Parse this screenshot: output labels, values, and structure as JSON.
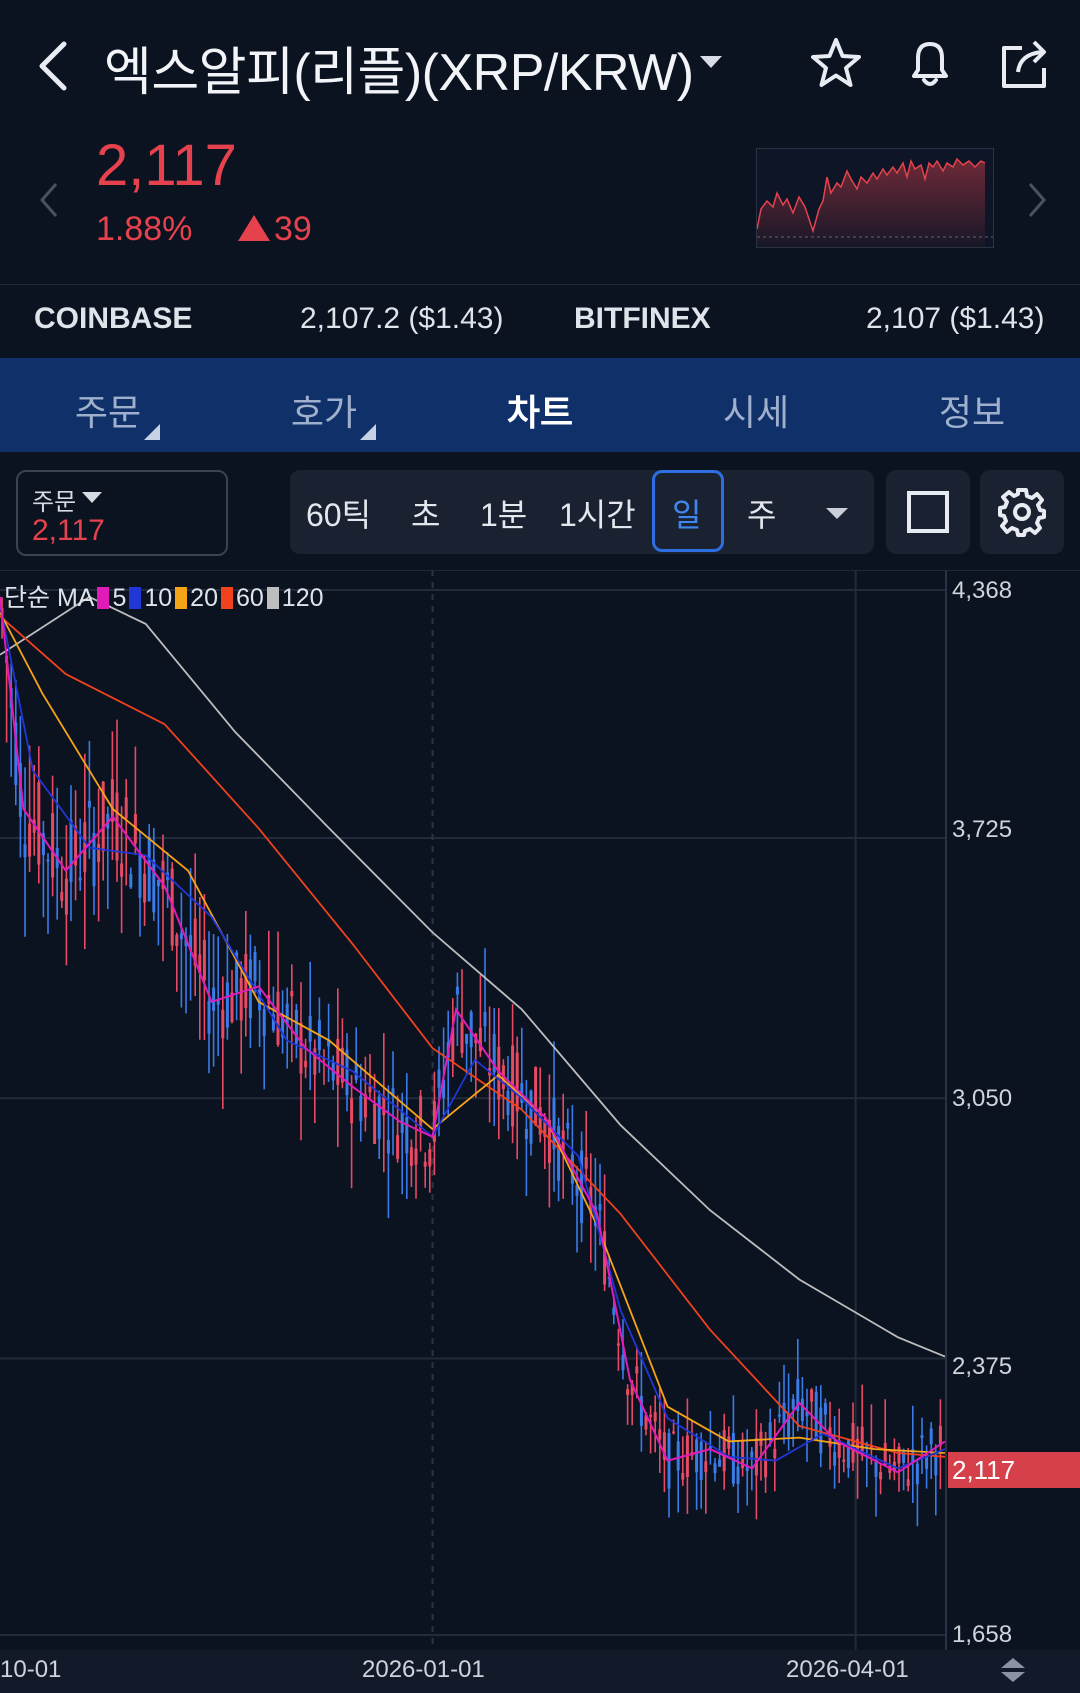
{
  "header": {
    "title": "엑스알피(리플)(XRP/KRW)",
    "back_icon": "chevron-left-icon",
    "icons": [
      "star-icon",
      "bell-icon",
      "share-icon"
    ]
  },
  "ticker": {
    "price": "2,117",
    "change_pct": "1.88%",
    "change_abs": "39",
    "color_up": "#e5424d"
  },
  "exchanges": [
    {
      "name": "COINBASE",
      "value": "2,107.2 ($1.43)"
    },
    {
      "name": "BITFINEX",
      "value": "2,107 ($1.43)"
    }
  ],
  "tabs": [
    {
      "label": "주문"
    },
    {
      "label": "호가"
    },
    {
      "label": "차트",
      "active": true
    },
    {
      "label": "시세"
    },
    {
      "label": "정보"
    }
  ],
  "toolbar": {
    "order_label": "주문",
    "order_value": "2,117",
    "timeframes": [
      "60틱",
      "초",
      "1분",
      "1시간",
      "일",
      "주"
    ],
    "selected_timeframe": "일"
  },
  "chart_data": {
    "type": "line",
    "ma_legend": {
      "prefix": "단순 MA",
      "periods": [
        {
          "label": "5",
          "color": "#e01bb8"
        },
        {
          "label": "10",
          "color": "#2036d6"
        },
        {
          "label": "20",
          "color": "#f5a418"
        },
        {
          "label": "60",
          "color": "#f0421c"
        },
        {
          "label": "120",
          "color": "#bdbdbd"
        }
      ]
    },
    "y_ticks": [
      "4,368",
      "3,725",
      "3,050",
      "2,375",
      "1,658"
    ],
    "y_tick_values": [
      4368,
      3725,
      3050,
      2375,
      1658
    ],
    "current_price_label": "2,117",
    "current_price": 2117,
    "x_ticks": [
      "10-01",
      "2026-01-01",
      "2026-04-01"
    ],
    "ylim": [
      1658,
      4368
    ],
    "grid": true,
    "series": [
      {
        "name": "120",
        "color": "#bdbdbd",
        "x": [
          "2025-10-01",
          "2025-10-20",
          "2025-11-01",
          "2025-11-20",
          "2025-12-10",
          "2026-01-01",
          "2026-01-20",
          "2026-02-10",
          "2026-03-01",
          "2026-03-20",
          "2026-04-10",
          "2026-04-20"
        ],
        "y": [
          4200,
          4350,
          4280,
          4000,
          3750,
          3480,
          3280,
          2980,
          2760,
          2580,
          2430,
          2380
        ]
      },
      {
        "name": "60",
        "color": "#f0421c",
        "x": [
          "2025-10-01",
          "2025-10-15",
          "2025-11-05",
          "2025-11-25",
          "2025-12-15",
          "2026-01-01",
          "2026-01-20",
          "2026-02-10",
          "2026-03-01",
          "2026-03-20",
          "2026-04-10",
          "2026-04-20"
        ],
        "y": [
          4300,
          4150,
          4020,
          3750,
          3450,
          3180,
          3020,
          2750,
          2450,
          2200,
          2130,
          2120
        ]
      },
      {
        "name": "20",
        "color": "#f5a418",
        "x": [
          "2025-10-01",
          "2025-10-10",
          "2025-10-25",
          "2025-11-10",
          "2025-11-25",
          "2025-12-10",
          "2026-01-01",
          "2026-01-15",
          "2026-01-25",
          "2026-02-05",
          "2026-02-20",
          "2026-03-05",
          "2026-03-20",
          "2026-04-05",
          "2026-04-20"
        ],
        "y": [
          4310,
          4100,
          3800,
          3640,
          3300,
          3200,
          2970,
          3110,
          3000,
          2720,
          2250,
          2160,
          2170,
          2140,
          2130
        ]
      },
      {
        "name": "10",
        "color": "#2036d6",
        "x": [
          "2025-10-01",
          "2025-10-08",
          "2025-10-20",
          "2025-11-01",
          "2025-11-15",
          "2025-12-01",
          "2025-12-15",
          "2026-01-01",
          "2026-01-10",
          "2026-01-20",
          "2026-02-01",
          "2026-02-10",
          "2026-02-20",
          "2026-03-05",
          "2026-03-15",
          "2026-03-25",
          "2026-04-10",
          "2026-04-20"
        ],
        "y": [
          4330,
          3900,
          3700,
          3680,
          3520,
          3200,
          3120,
          2950,
          3150,
          3050,
          2900,
          2500,
          2220,
          2120,
          2110,
          2180,
          2090,
          2140
        ]
      },
      {
        "name": "5",
        "color": "#e01bb8",
        "x": [
          "2025-10-01",
          "2025-10-06",
          "2025-10-15",
          "2025-10-25",
          "2025-11-05",
          "2025-11-15",
          "2025-11-25",
          "2025-12-05",
          "2025-12-15",
          "2025-12-25",
          "2026-01-01",
          "2026-01-06",
          "2026-01-15",
          "2026-01-25",
          "2026-02-05",
          "2026-02-12",
          "2026-02-20",
          "2026-03-01",
          "2026-03-10",
          "2026-03-20",
          "2026-03-28",
          "2026-04-10",
          "2026-04-20"
        ],
        "y": [
          4350,
          3800,
          3640,
          3780,
          3600,
          3300,
          3340,
          3180,
          3080,
          2990,
          2950,
          3280,
          3120,
          3000,
          2750,
          2320,
          2110,
          2140,
          2090,
          2260,
          2160,
          2080,
          2160
        ]
      }
    ]
  }
}
